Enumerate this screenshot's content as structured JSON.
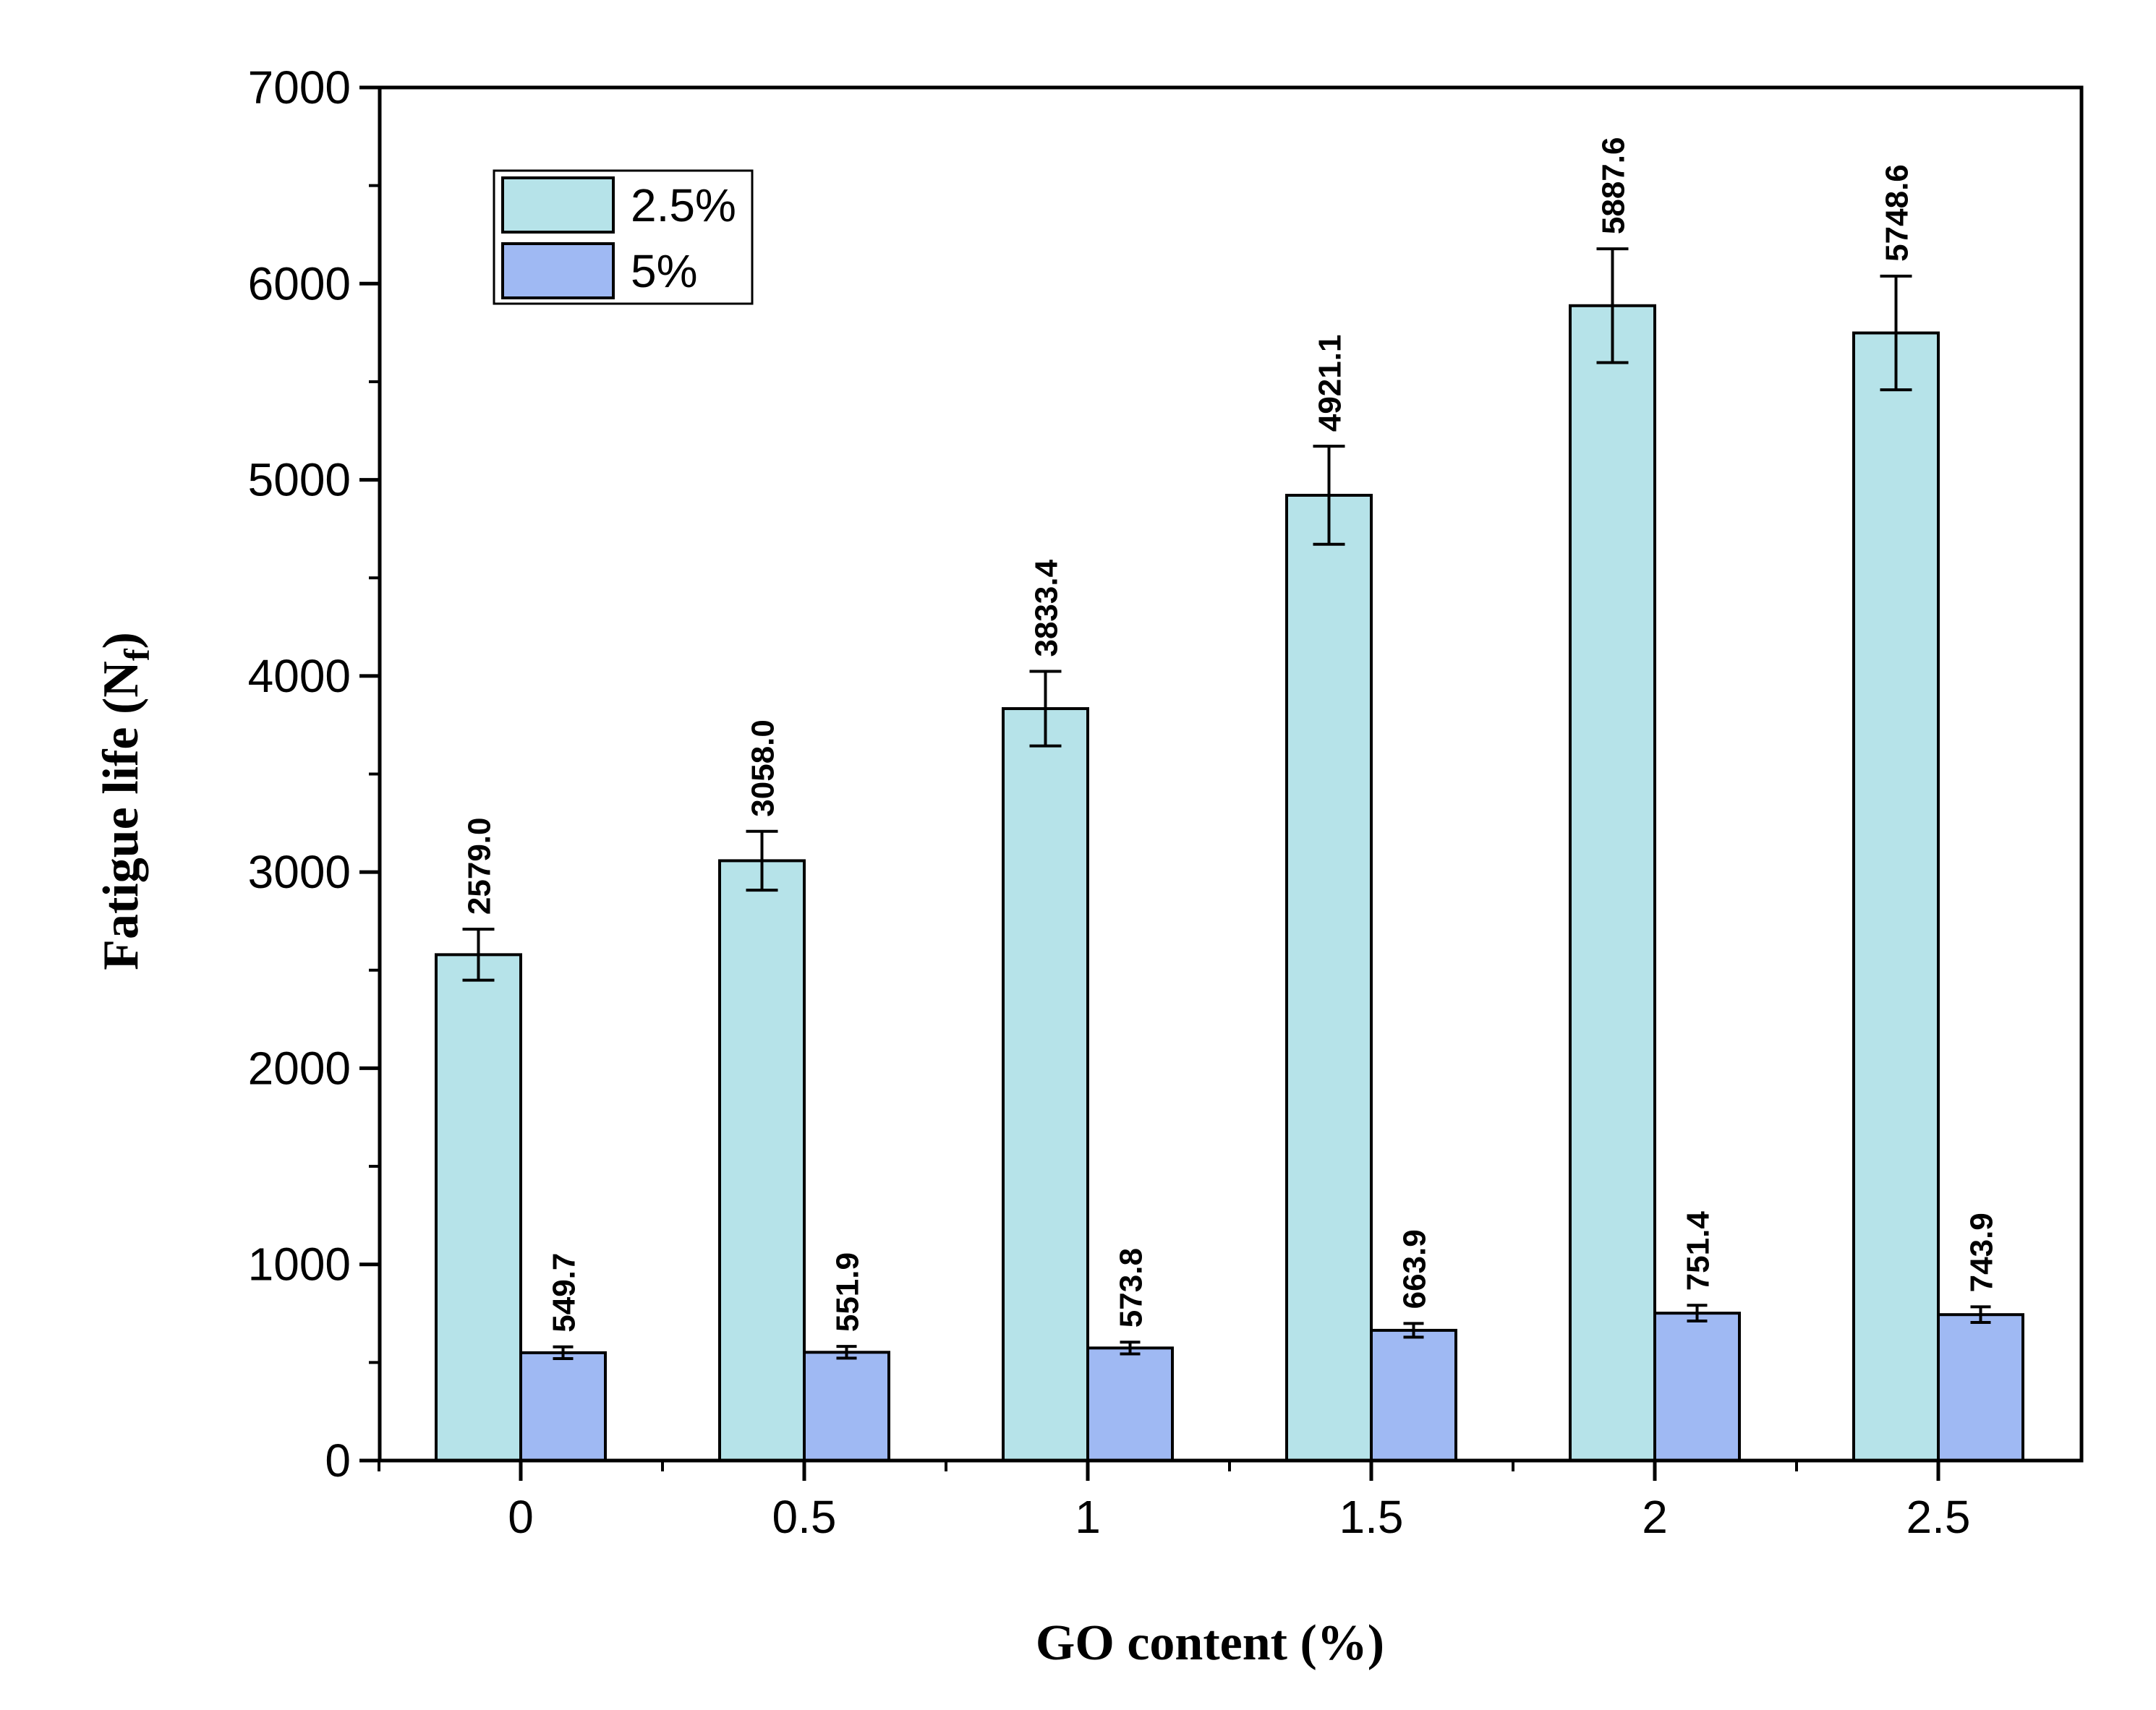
{
  "chart_data": {
    "type": "bar",
    "title": "",
    "xlabel": "GO content (%)",
    "ylabel_main": "Fatigue life (N",
    "ylabel_sub": "f",
    "ylabel_close": ")",
    "ylim": [
      0,
      7000
    ],
    "yticks": [
      0,
      1000,
      2000,
      3000,
      4000,
      5000,
      6000,
      7000
    ],
    "categories": [
      "0",
      "0.5",
      "1",
      "1.5",
      "2",
      "2.5"
    ],
    "legend_position": "top-left",
    "series": [
      {
        "name": "2.5%",
        "color": "#b6e3e9",
        "values": [
          2579.0,
          3058.0,
          3833.4,
          4921.1,
          5887.6,
          5748.6
        ],
        "labels": [
          "2579.0",
          "3058.0",
          "3833.4",
          "4921.1",
          "5887.6",
          "5748.6"
        ],
        "errors": [
          130,
          150,
          190,
          250,
          290,
          290
        ]
      },
      {
        "name": "5%",
        "color": "#9fb9f3",
        "values": [
          549.7,
          551.9,
          573.8,
          663.9,
          751.4,
          743.9
        ],
        "labels": [
          "549.7",
          "551.9",
          "573.8",
          "663.9",
          "751.4",
          "743.9"
        ],
        "errors": [
          30,
          30,
          30,
          35,
          40,
          40
        ]
      }
    ]
  }
}
